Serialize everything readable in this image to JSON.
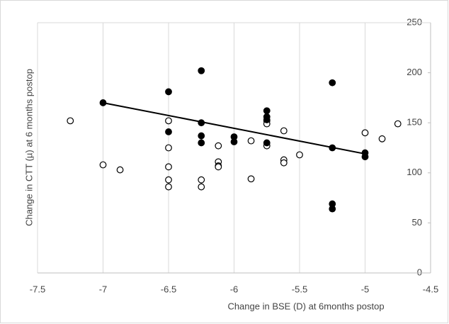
{
  "chart_data": {
    "type": "scatter",
    "x_label": "Change in BSE (D) at  6months postop",
    "y_label": "Change in CTT (µ) at 6 months postop",
    "xlim": [
      -7.5,
      -4.5
    ],
    "xticks": [
      -7.5,
      -7,
      -6.5,
      -6,
      -5.5,
      -5,
      -4.5
    ],
    "ylim": [
      0,
      250
    ],
    "yticks": [
      0,
      50,
      100,
      150,
      200,
      250
    ],
    "grid": "vertical",
    "series": [
      {
        "marker": "open",
        "color": "#000000",
        "x": [
          -7.25,
          -7,
          -6.87,
          -6.5,
          -6.5,
          -6.5,
          -6.5,
          -6.5,
          -6.25,
          -6.25,
          -6.12,
          -6.12,
          -6.12,
          -6.12,
          -5.87,
          -5.87,
          -5.75,
          -5.75,
          -5.75,
          -5.62,
          -5.62,
          -5.62,
          -5.5,
          -5,
          -4.87,
          -4.75
        ],
        "values": [
          152,
          108,
          103,
          152,
          125,
          106,
          93,
          86,
          93,
          86,
          127,
          111,
          107,
          106,
          132,
          94,
          152,
          149,
          127,
          142,
          113,
          110,
          118,
          140,
          134,
          149
        ]
      },
      {
        "marker": "filled",
        "color": "#000000",
        "x": [
          -7,
          -6.5,
          -6.5,
          -6.25,
          -6.25,
          -6.25,
          -6.25,
          -6,
          -6,
          -5.75,
          -5.75,
          -5.75,
          -5.75,
          -5.25,
          -5.25,
          -5.25,
          -5.25,
          -5,
          -5
        ],
        "values": [
          170,
          181,
          141,
          202,
          150,
          137,
          130,
          136,
          131,
          162,
          156,
          153,
          130,
          190,
          125,
          69,
          64,
          120,
          116
        ]
      }
    ],
    "trendline": {
      "color": "#000000",
      "x": [
        -7,
        -5
      ],
      "values": [
        170,
        119
      ]
    }
  }
}
